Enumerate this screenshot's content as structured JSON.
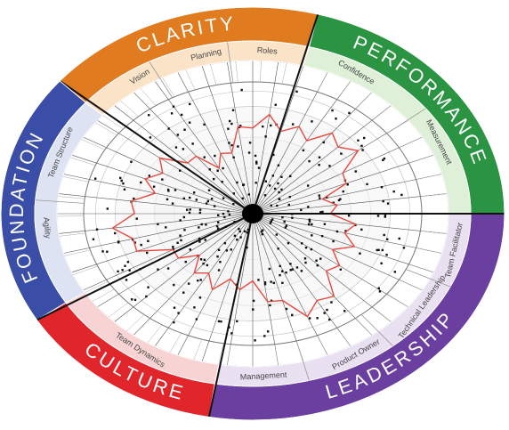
{
  "sections": [
    {
      "title": "CLARITY",
      "subsections": [
        "Vision",
        "Planning",
        "Roles"
      ]
    },
    {
      "title": "PERFORMANCE",
      "subsections": [
        "Confidence",
        "Measurement"
      ]
    },
    {
      "title": "LEADERSHIP",
      "subsections": [
        "Team Facilitator",
        "Technical Leadership",
        "Product Owner",
        "Management"
      ]
    },
    {
      "title": "CULTURE",
      "subsections": [
        "Team Dynamics"
      ]
    },
    {
      "title": "FOUNDATION",
      "subsections": [
        "Team Structure",
        "Agility"
      ]
    }
  ]
}
